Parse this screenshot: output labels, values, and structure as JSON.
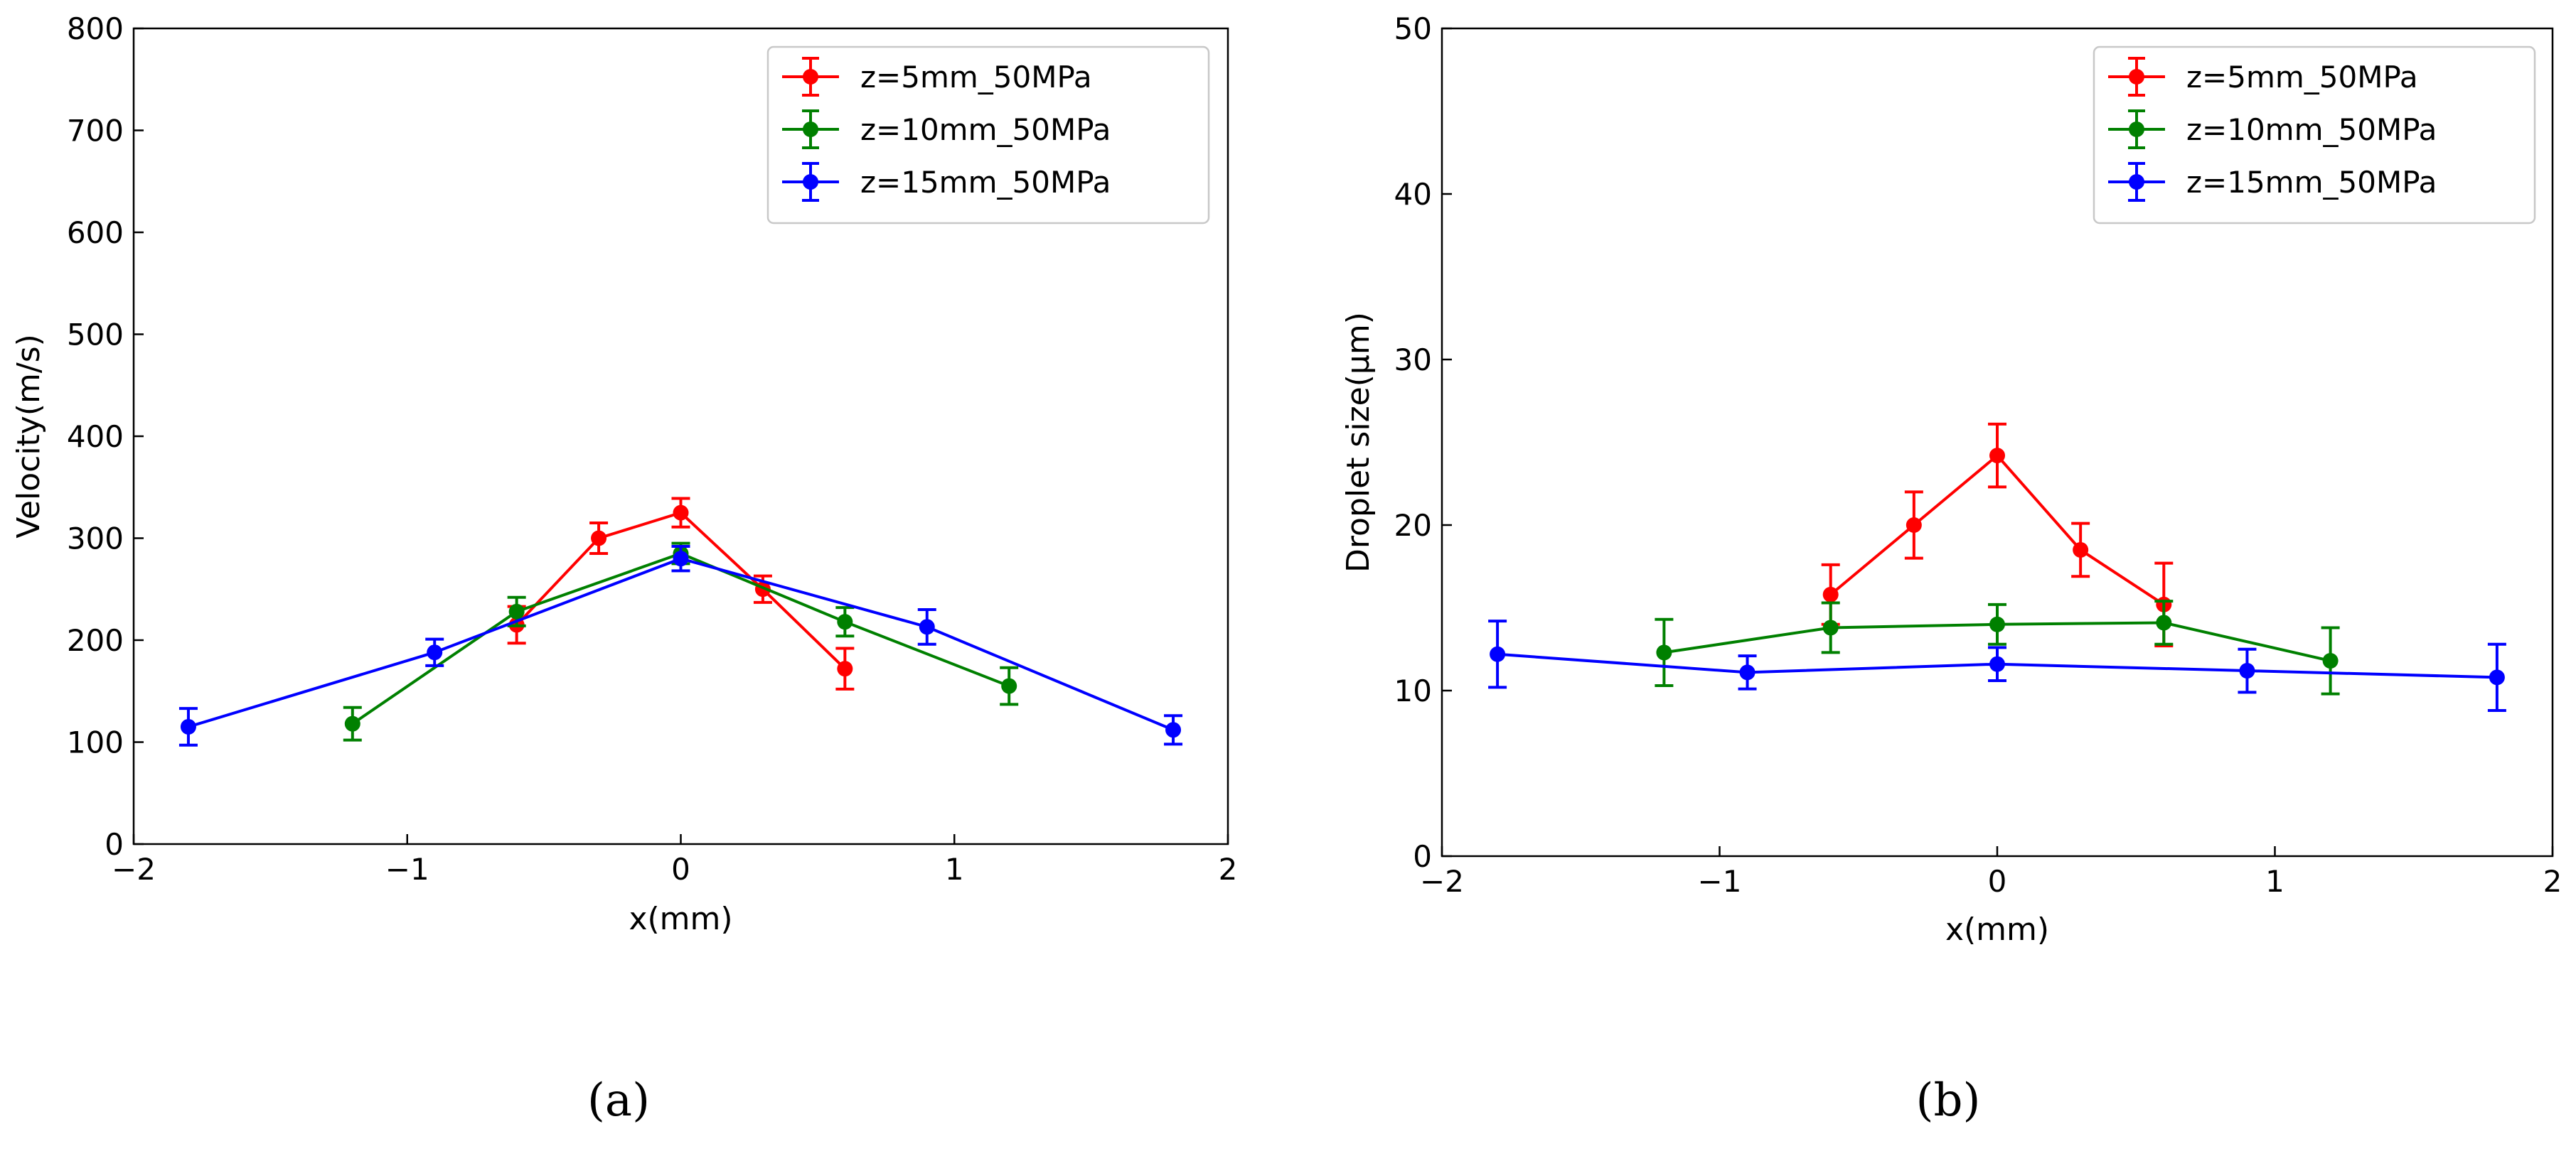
{
  "chart_data": [
    {
      "type": "line",
      "panel": "a",
      "caption": "(a)",
      "xlabel": "x(mm)",
      "ylabel": "Velocity(m/s)",
      "xlim": [
        -2,
        2
      ],
      "ylim": [
        0,
        800
      ],
      "xticks": [
        -2,
        -1,
        0,
        1,
        2
      ],
      "xtick_labels": [
        "−2",
        "−1",
        "0",
        "1",
        "2"
      ],
      "yticks": [
        0,
        100,
        200,
        300,
        400,
        500,
        600,
        700,
        800
      ],
      "ytick_labels": [
        "0",
        "100",
        "200",
        "300",
        "400",
        "500",
        "600",
        "700",
        "800"
      ],
      "legend_position": "top-right",
      "grid": false,
      "series": [
        {
          "name": "z=5mm_50MPa",
          "color": "#ff0000",
          "x": [
            -0.6,
            -0.3,
            0,
            0.3,
            0.6
          ],
          "y": [
            215,
            300,
            325,
            250,
            172
          ],
          "err": [
            18,
            15,
            14,
            13,
            20
          ]
        },
        {
          "name": "z=10mm_50MPa",
          "color": "#008000",
          "x": [
            -1.2,
            -0.6,
            0,
            0.6,
            1.2
          ],
          "y": [
            118,
            228,
            285,
            218,
            155
          ],
          "err": [
            16,
            14,
            10,
            14,
            18
          ]
        },
        {
          "name": "z=15mm_50MPa",
          "color": "#0000ff",
          "x": [
            -1.8,
            -0.9,
            0,
            0.9,
            1.8
          ],
          "y": [
            115,
            188,
            280,
            213,
            112
          ],
          "err": [
            18,
            13,
            12,
            17,
            14
          ]
        }
      ]
    },
    {
      "type": "line",
      "panel": "b",
      "caption": "(b)",
      "xlabel": "x(mm)",
      "ylabel": "Droplet size(μm)",
      "xlim": [
        -2,
        2
      ],
      "ylim": [
        0,
        50
      ],
      "xticks": [
        -2,
        -1,
        0,
        1,
        2
      ],
      "xtick_labels": [
        "−2",
        "−1",
        "0",
        "1",
        "2"
      ],
      "yticks": [
        0,
        10,
        20,
        30,
        40,
        50
      ],
      "ytick_labels": [
        "0",
        "10",
        "20",
        "30",
        "40",
        "50"
      ],
      "legend_position": "top-right",
      "grid": false,
      "series": [
        {
          "name": "z=5mm_50MPa",
          "color": "#ff0000",
          "x": [
            -0.6,
            -0.3,
            0,
            0.3,
            0.6
          ],
          "y": [
            15.8,
            20.0,
            24.2,
            18.5,
            15.2
          ],
          "err": [
            1.8,
            2.0,
            1.9,
            1.6,
            2.5
          ]
        },
        {
          "name": "z=10mm_50MPa",
          "color": "#008000",
          "x": [
            -1.2,
            -0.6,
            0,
            0.6,
            1.2
          ],
          "y": [
            12.3,
            13.8,
            14.0,
            14.1,
            11.8
          ],
          "err": [
            2.0,
            1.5,
            1.2,
            1.3,
            2.0
          ]
        },
        {
          "name": "z=15mm_50MPa",
          "color": "#0000ff",
          "x": [
            -1.8,
            -0.9,
            0,
            0.9,
            1.8
          ],
          "y": [
            12.2,
            11.1,
            11.6,
            11.2,
            10.8
          ],
          "err": [
            2.0,
            1.0,
            1.0,
            1.3,
            2.0
          ]
        }
      ]
    }
  ]
}
